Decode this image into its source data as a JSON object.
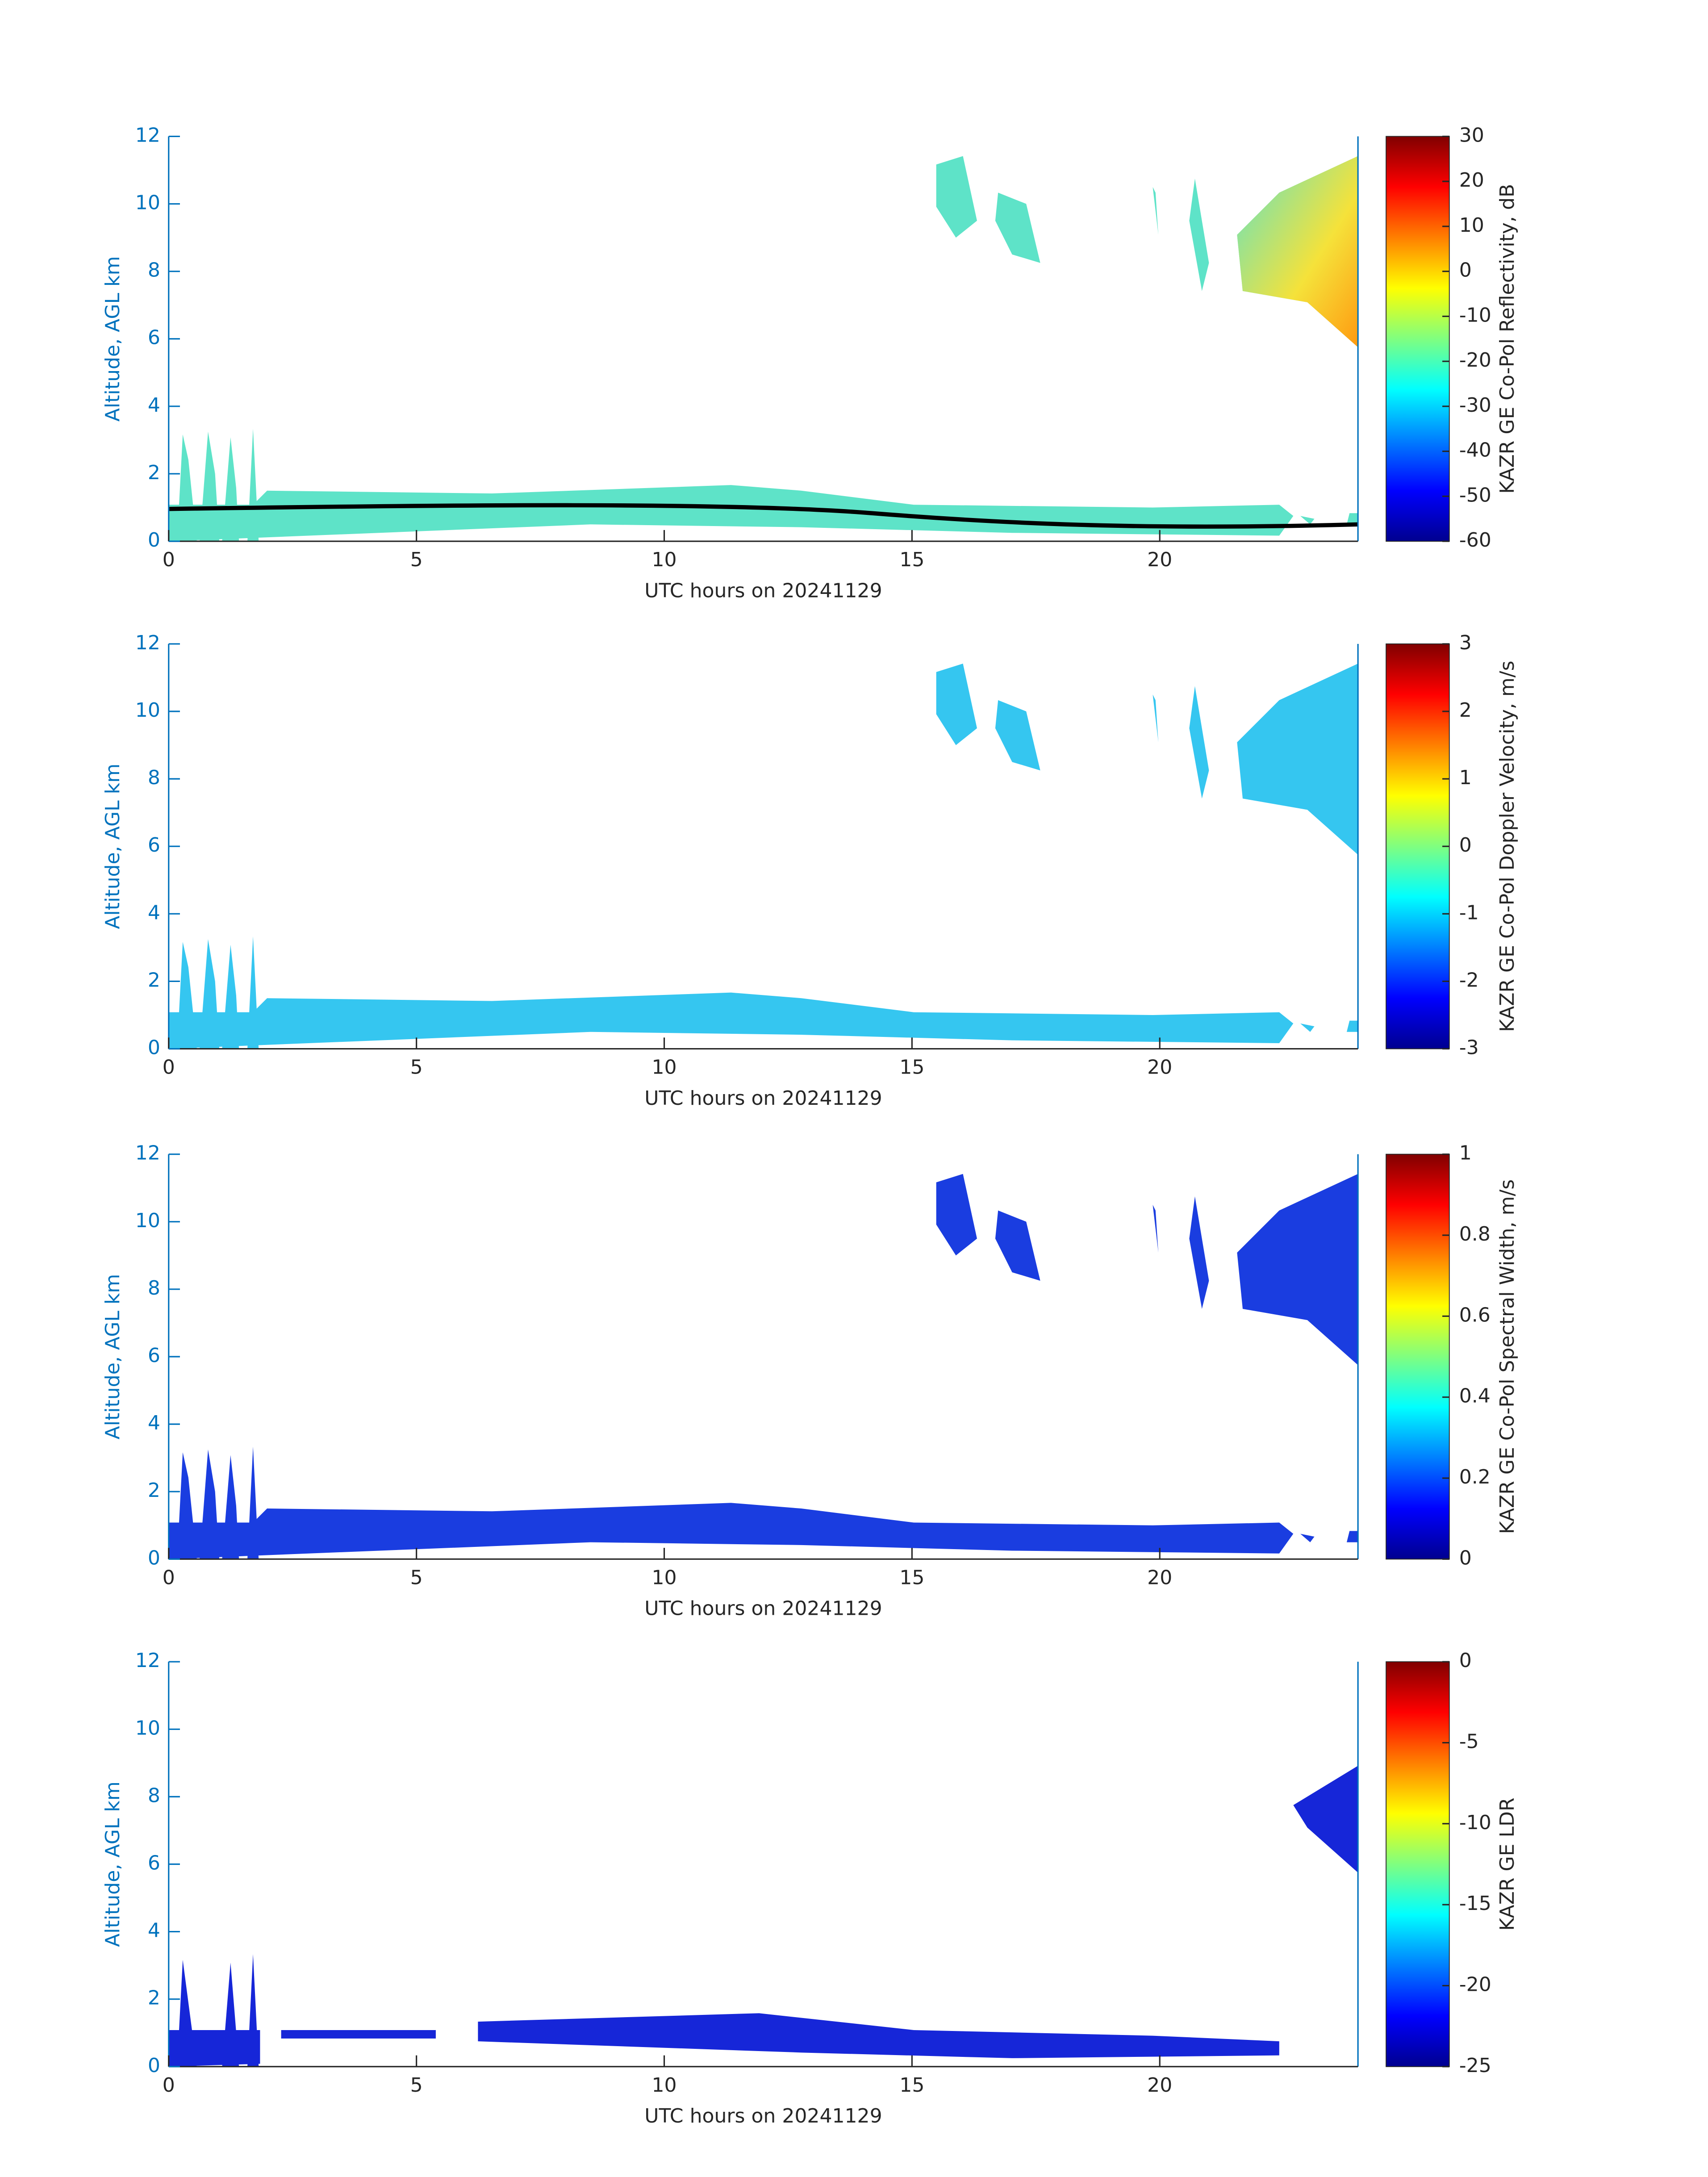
{
  "chart_data": [
    {
      "type": "heatmap",
      "xlabel": "UTC hours on 20241129",
      "ylabel": "Altitude, AGL km",
      "colorbar_label": "KAZR GE Co-Pol Reflectivity, dB",
      "xlim": [
        0,
        24
      ],
      "xticks": [
        0,
        5,
        10,
        15,
        20
      ],
      "ylim": [
        0,
        12
      ],
      "yticks": [
        0,
        2,
        4,
        6,
        8,
        10,
        12
      ],
      "colormap": "jet",
      "clim": [
        -60,
        30
      ],
      "cticks": [
        -60,
        -50,
        -40,
        -30,
        -20,
        -10,
        0,
        10,
        20,
        30
      ]
    },
    {
      "type": "heatmap",
      "xlabel": "UTC hours on 20241129",
      "ylabel": "Altitude, AGL km",
      "colorbar_label": "KAZR GE Co-Pol Doppler Velocity, m/s",
      "xlim": [
        0,
        24
      ],
      "xticks": [
        0,
        5,
        10,
        15,
        20
      ],
      "ylim": [
        0,
        12
      ],
      "yticks": [
        0,
        2,
        4,
        6,
        8,
        10,
        12
      ],
      "colormap": "jet",
      "clim": [
        -3,
        3
      ],
      "cticks": [
        -3,
        -2,
        -1,
        0,
        1,
        2,
        3
      ]
    },
    {
      "type": "heatmap",
      "xlabel": "UTC hours on 20241129",
      "ylabel": "Altitude, AGL km",
      "colorbar_label": "KAZR GE Co-Pol Spectral Width, m/s",
      "xlim": [
        0,
        24
      ],
      "xticks": [
        0,
        5,
        10,
        15,
        20
      ],
      "ylim": [
        0,
        12
      ],
      "yticks": [
        0,
        2,
        4,
        6,
        8,
        10,
        12
      ],
      "colormap": "jet",
      "clim": [
        0,
        1
      ],
      "cticks": [
        0,
        0.2,
        0.4,
        0.6,
        0.8,
        1
      ]
    },
    {
      "type": "heatmap",
      "xlabel": "UTC hours on 20241129",
      "ylabel": "Altitude, AGL km",
      "colorbar_label": "KAZR GE LDR",
      "xlim": [
        0,
        24
      ],
      "xticks": [
        0,
        5,
        10,
        15,
        20
      ],
      "ylim": [
        0,
        12
      ],
      "yticks": [
        0,
        2,
        4,
        6,
        8,
        10,
        12
      ],
      "colormap": "jet",
      "clim": [
        -25,
        0
      ],
      "cticks": [
        -25,
        -20,
        -15,
        -10,
        -5,
        0
      ]
    }
  ]
}
